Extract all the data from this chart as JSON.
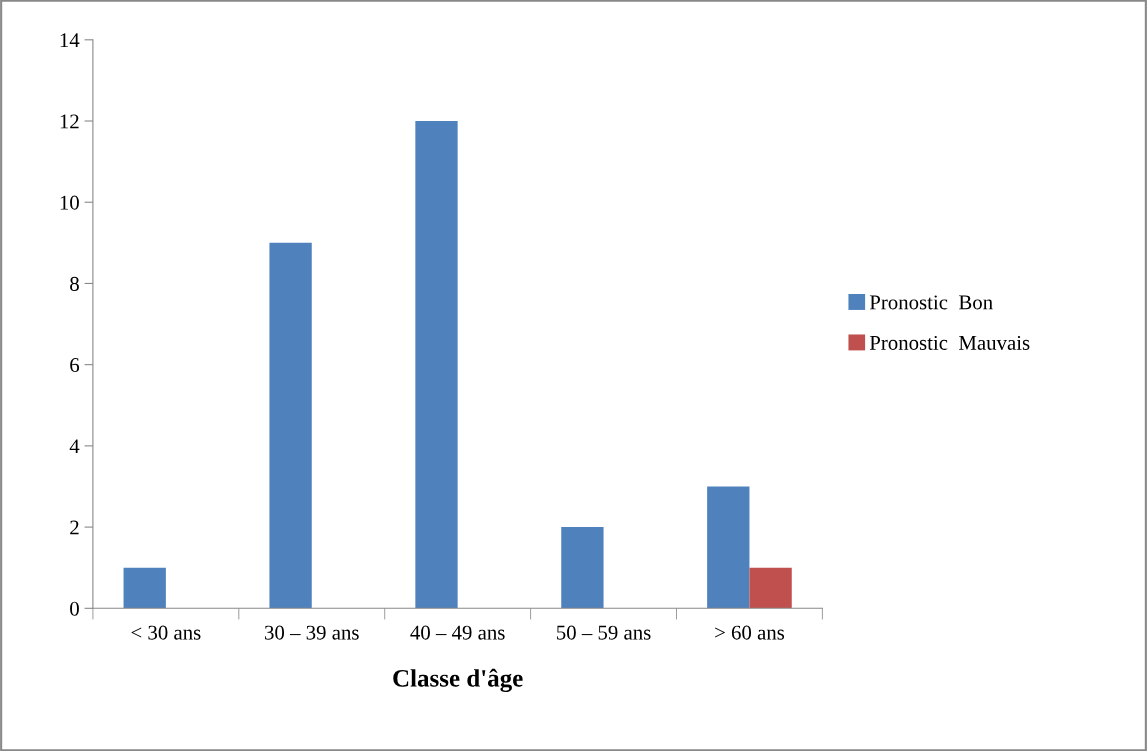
{
  "chart_data": {
    "type": "bar",
    "xlabel": "Classe d'âge",
    "categories": [
      "< 30 ans",
      "30 – 39 ans",
      "40 – 49 ans",
      "50 – 59 ans",
      "> 60 ans"
    ],
    "series": [
      {
        "name": "Pronostic  Bon",
        "color": "#4f81bd",
        "values": [
          1,
          9,
          12,
          2,
          3
        ]
      },
      {
        "name": "Pronostic  Mauvais",
        "color": "#c0504d",
        "values": [
          0,
          0,
          0,
          0,
          1
        ]
      }
    ],
    "ylim": [
      0,
      14
    ],
    "yticks": [
      0,
      2,
      4,
      6,
      8,
      10,
      12,
      14
    ],
    "grid": false,
    "legend": "right"
  }
}
